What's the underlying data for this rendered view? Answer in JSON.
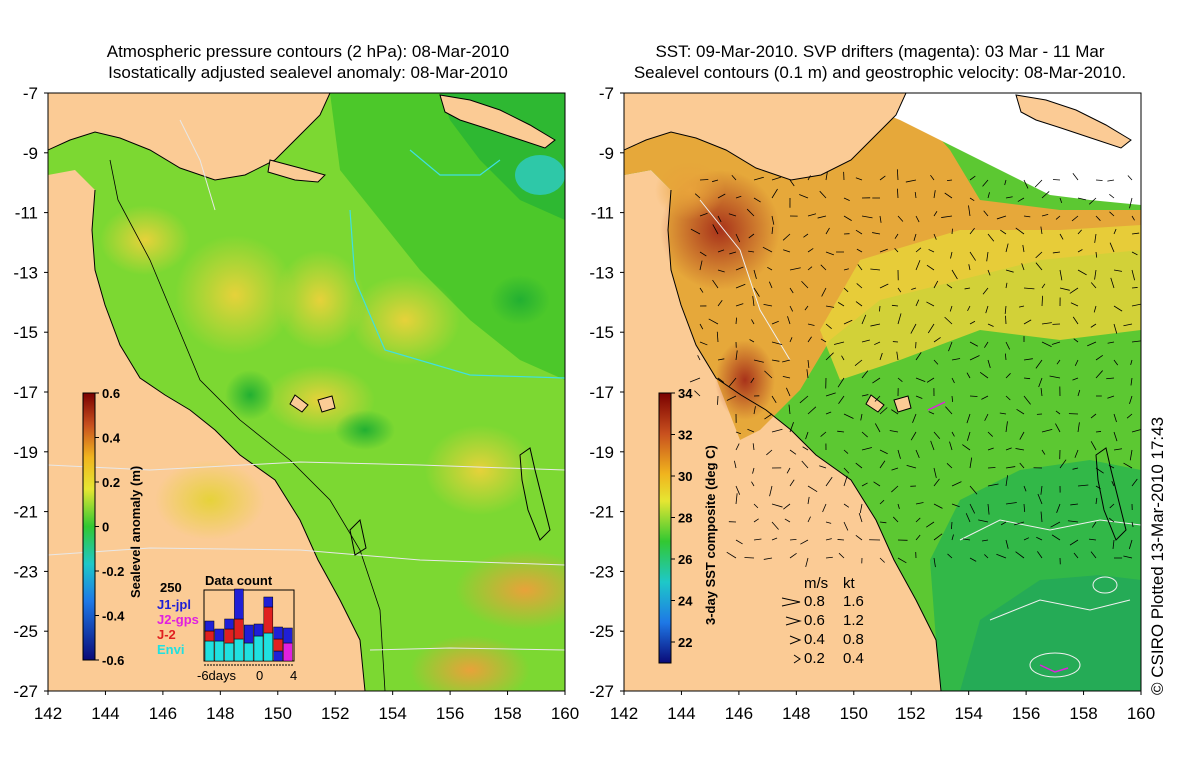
{
  "left_panel": {
    "title_line1": "Atmospheric pressure contours (2 hPa): 08-Mar-2010",
    "title_line2": "Isostatically adjusted sealevel anomaly: 08-Mar-2010",
    "colorbar": {
      "label": "Sealevel anomaly (m)",
      "ticks": [
        "0.6",
        "0.4",
        "0.2",
        "0",
        "-0.2",
        "-0.4",
        "-0.6"
      ]
    },
    "data_count": {
      "title": "Data count",
      "ymax_label": "250",
      "legend": [
        {
          "label": "J1-jpl",
          "color": "#1f1fd6"
        },
        {
          "label": "J2-gps",
          "color": "#e020e0"
        },
        {
          "label": "J-2",
          "color": "#e02020"
        },
        {
          "label": "Envi",
          "color": "#20e0e0"
        }
      ],
      "x_labels": [
        "-6days",
        "0",
        "4"
      ]
    }
  },
  "right_panel": {
    "title_line1": "SST: 09-Mar-2010. SVP drifters (magenta): 03 Mar - 11 Mar",
    "title_line2": "Sealevel contours (0.1 m) and geostrophic velocity: 08-Mar-2010.",
    "colorbar": {
      "label": "3-day SST composite (deg C)",
      "ticks": [
        "34",
        "32",
        "30",
        "28",
        "26",
        "24",
        "22"
      ]
    },
    "velocity_legend": {
      "header_ms": "m/s",
      "header_kt": "kt",
      "rows": [
        {
          "ms": "0.8",
          "kt": "1.6"
        },
        {
          "ms": "0.6",
          "kt": "1.2"
        },
        {
          "ms": "0.4",
          "kt": "0.8"
        },
        {
          "ms": "0.2",
          "kt": "0.4"
        }
      ]
    }
  },
  "axes": {
    "y_ticks": [
      "-7",
      "-9",
      "-11",
      "-13",
      "-15",
      "-17",
      "-19",
      "-21",
      "-23",
      "-25",
      "-27"
    ],
    "x_ticks": [
      "142",
      "144",
      "146",
      "148",
      "150",
      "152",
      "154",
      "156",
      "158",
      "160"
    ]
  },
  "credit": "© CSIRO Plotted 13-Mar-2010 17:43",
  "colors": {
    "land": "#fbcb95",
    "no_data": "#ffffff"
  }
}
